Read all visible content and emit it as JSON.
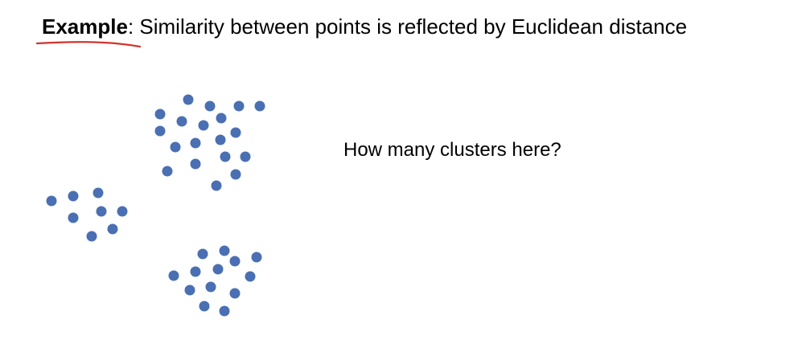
{
  "title": {
    "bold_part": "Example",
    "rest": ": Similarity between points is reflected by Euclidean distance"
  },
  "question": "How many clusters here?",
  "colors": {
    "dot": "#4a6fb3",
    "underline": "#d0342c"
  },
  "clusters": [
    {
      "name": "cluster-top",
      "points": [
        [
          234,
          124
        ],
        [
          261,
          132
        ],
        [
          297,
          132
        ],
        [
          323,
          132
        ],
        [
          199,
          142
        ],
        [
          226,
          151
        ],
        [
          275,
          147
        ],
        [
          199,
          163
        ],
        [
          253,
          156
        ],
        [
          293,
          165
        ],
        [
          218,
          183
        ],
        [
          243,
          178
        ],
        [
          274,
          174
        ],
        [
          280,
          195
        ],
        [
          305,
          195
        ],
        [
          243,
          204
        ],
        [
          208,
          213
        ],
        [
          293,
          217
        ],
        [
          269,
          231
        ]
      ]
    },
    {
      "name": "cluster-left",
      "points": [
        [
          64,
          250
        ],
        [
          91,
          244
        ],
        [
          122,
          240
        ],
        [
          126,
          263
        ],
        [
          152,
          263
        ],
        [
          91,
          271
        ],
        [
          140,
          285
        ],
        [
          114,
          294
        ]
      ]
    },
    {
      "name": "cluster-bottom",
      "points": [
        [
          252,
          316
        ],
        [
          279,
          312
        ],
        [
          319,
          320
        ],
        [
          292,
          325
        ],
        [
          271,
          335
        ],
        [
          243,
          338
        ],
        [
          216,
          343
        ],
        [
          311,
          344
        ],
        [
          262,
          357
        ],
        [
          236,
          361
        ],
        [
          292,
          365
        ],
        [
          254,
          381
        ],
        [
          279,
          387
        ]
      ]
    }
  ]
}
